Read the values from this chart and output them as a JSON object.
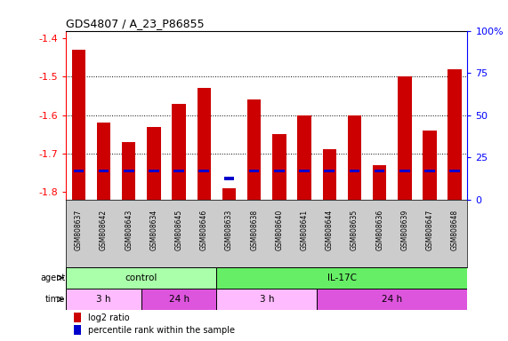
{
  "title": "GDS4807 / A_23_P86855",
  "samples": [
    "GSM808637",
    "GSM808642",
    "GSM808643",
    "GSM808634",
    "GSM808645",
    "GSM808646",
    "GSM808633",
    "GSM808638",
    "GSM808640",
    "GSM808641",
    "GSM808644",
    "GSM808635",
    "GSM808636",
    "GSM808639",
    "GSM808647",
    "GSM808648"
  ],
  "log2_values": [
    -1.43,
    -1.62,
    -1.67,
    -1.63,
    -1.57,
    -1.53,
    -1.79,
    -1.56,
    -1.65,
    -1.6,
    -1.69,
    -1.6,
    -1.73,
    -1.5,
    -1.64,
    -1.48
  ],
  "percentile_values": [
    -1.745,
    -1.745,
    -1.745,
    -1.745,
    -1.745,
    -1.745,
    -1.765,
    -1.745,
    -1.745,
    -1.745,
    -1.745,
    -1.745,
    -1.745,
    -1.745,
    -1.745,
    -1.745
  ],
  "ymin": -1.82,
  "ymax": -1.38,
  "yticks": [
    -1.4,
    -1.5,
    -1.6,
    -1.7,
    -1.8
  ],
  "right_ytick_pcts": [
    100,
    75,
    50,
    25,
    0
  ],
  "bar_color": "#cc0000",
  "percentile_color": "#0000cc",
  "background_color": "#ffffff",
  "sample_bg_color": "#cccccc",
  "agent_groups": [
    {
      "label": "control",
      "start": 0,
      "end": 6,
      "color": "#aaffaa"
    },
    {
      "label": "IL-17C",
      "start": 6,
      "end": 16,
      "color": "#66ee66"
    }
  ],
  "time_groups": [
    {
      "label": "3 h",
      "start": 0,
      "end": 3,
      "color": "#ffbbff"
    },
    {
      "label": "24 h",
      "start": 3,
      "end": 6,
      "color": "#dd55dd"
    },
    {
      "label": "3 h",
      "start": 6,
      "end": 10,
      "color": "#ffbbff"
    },
    {
      "label": "24 h",
      "start": 10,
      "end": 16,
      "color": "#dd55dd"
    }
  ],
  "legend_red_label": "log2 ratio",
  "legend_blue_label": "percentile rank within the sample"
}
